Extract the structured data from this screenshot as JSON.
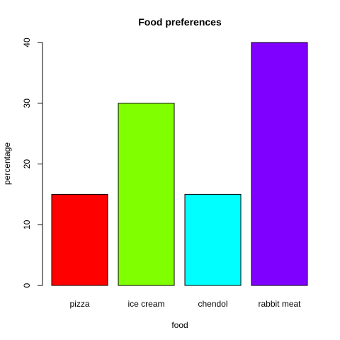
{
  "chart_data": {
    "type": "bar",
    "title": "Food preferences",
    "xlabel": "food",
    "ylabel": "percentage",
    "categories": [
      "pizza",
      "ice cream",
      "chendol",
      "rabbit meat"
    ],
    "values": [
      15,
      30,
      15,
      40
    ],
    "colors": [
      "#FF0000",
      "#80FF00",
      "#00FFFF",
      "#8000FF"
    ],
    "ylim": [
      0,
      40
    ],
    "yticks": [
      0,
      10,
      20,
      30,
      40
    ],
    "grid": false,
    "legend": "none"
  }
}
